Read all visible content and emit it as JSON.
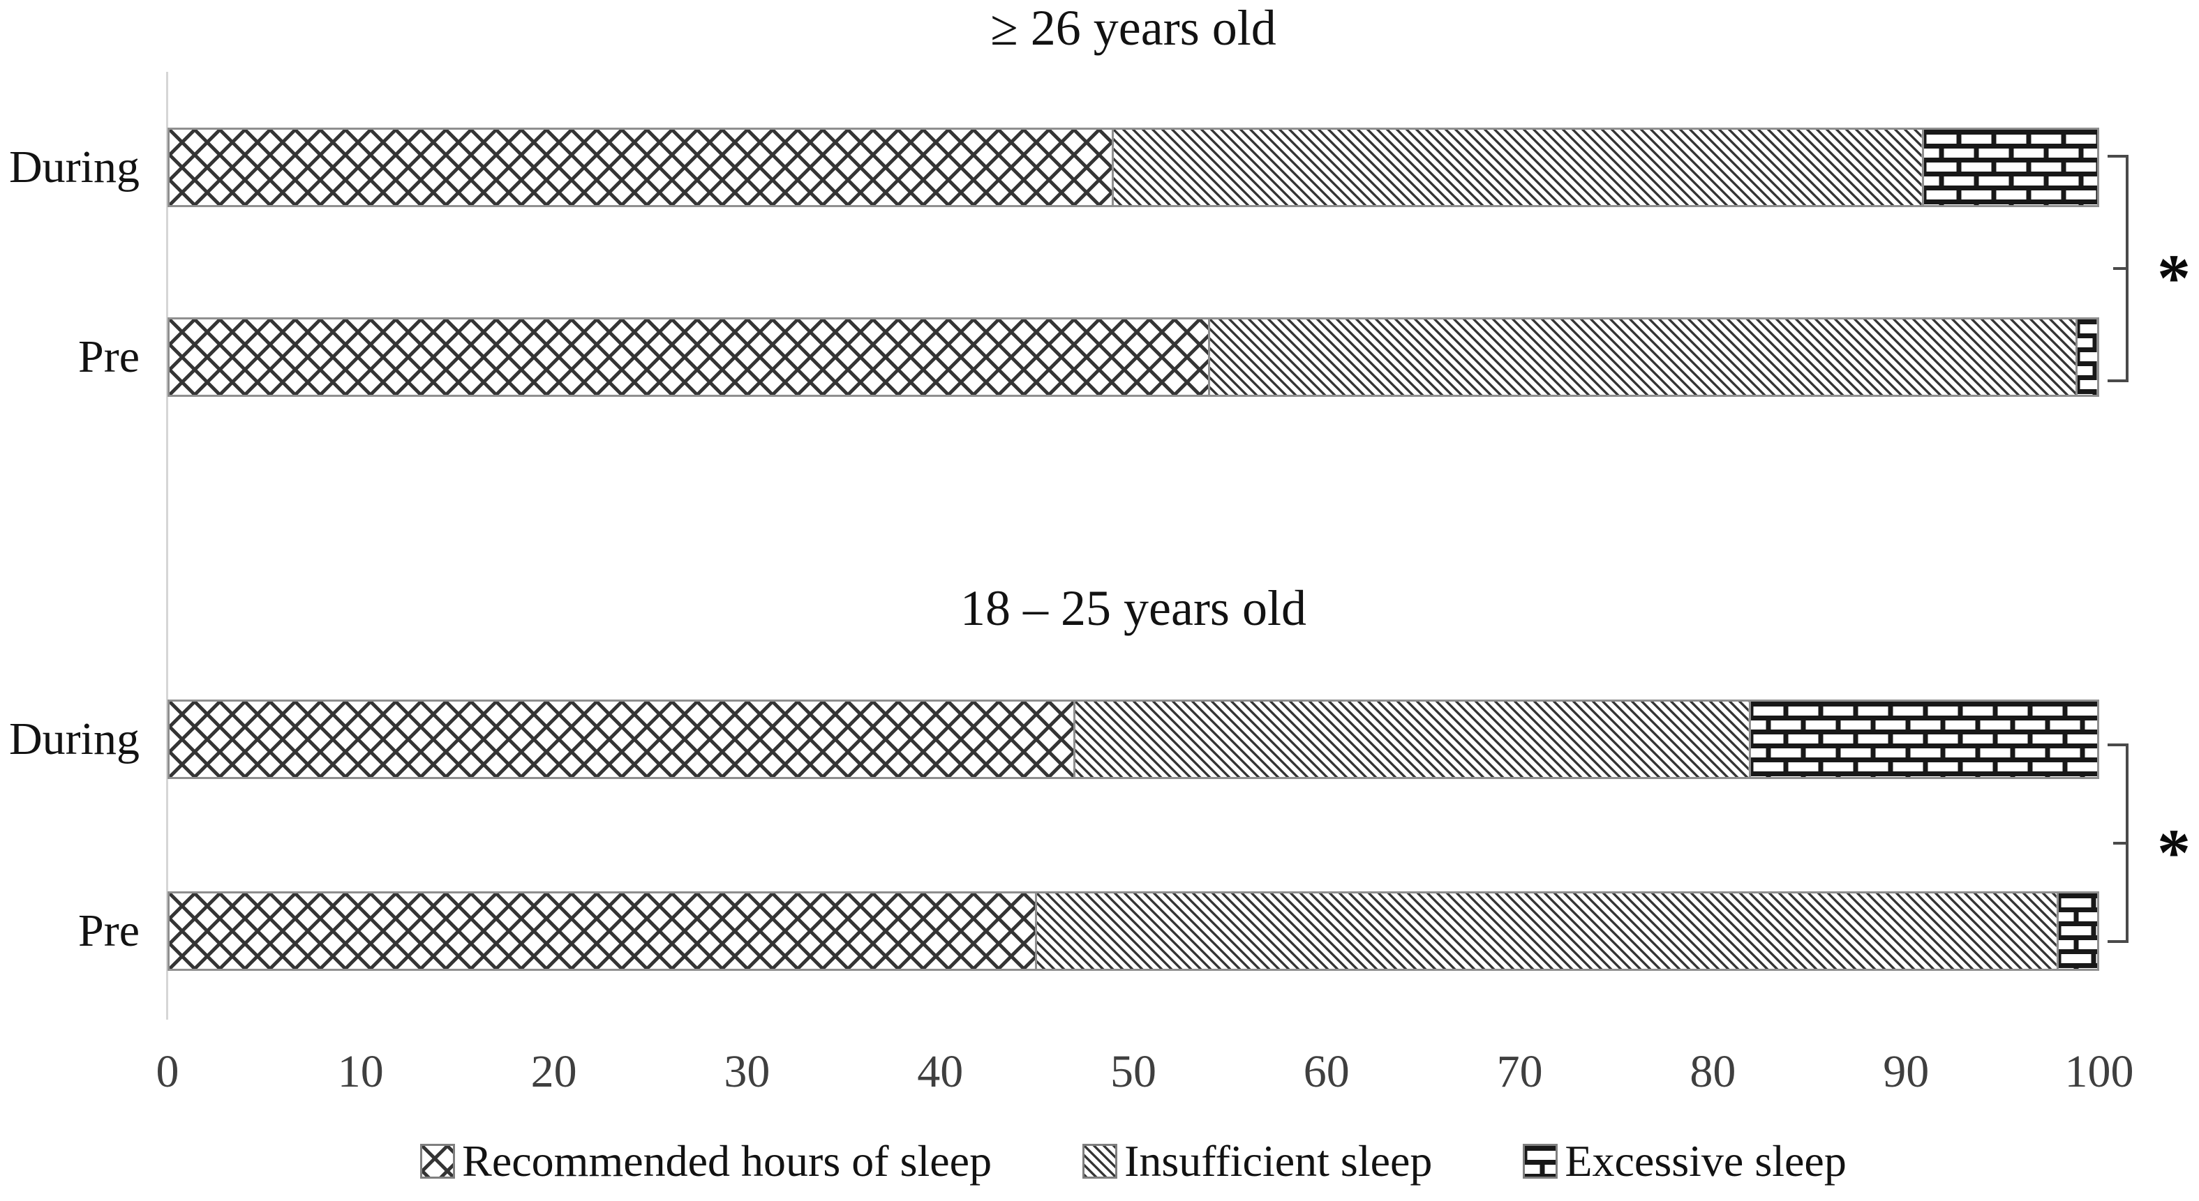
{
  "figure": {
    "description": "Stacked horizontal bar chart of sleep duration categories, pre vs during, for two age groups"
  },
  "colors": {
    "pattern_line": "#343434",
    "brick_line": "#181818",
    "bar_border": "#8f8f8f",
    "axis_line": "#d6d6d6",
    "tick_text": "#3f3f3f",
    "text": "#121212",
    "bracket": "#4a4a4a"
  },
  "x_axis": {
    "min": 0,
    "max": 100,
    "ticks": [
      "0",
      "10",
      "20",
      "30",
      "40",
      "50",
      "60",
      "70",
      "80",
      "90",
      "100"
    ]
  },
  "legend": {
    "items": [
      {
        "label": "Recommended hours of sleep",
        "pattern": "crosshatch"
      },
      {
        "label": "Insufficient sleep",
        "pattern": "diagonal"
      },
      {
        "label": "Excessive sleep",
        "pattern": "brick"
      }
    ]
  },
  "chart_data": [
    {
      "type": "bar",
      "orientation": "horizontal",
      "stacked": true,
      "title": "≥ 26 years old",
      "categories": [
        "During",
        "Pre"
      ],
      "series": [
        {
          "name": "Recommended hours of sleep",
          "pattern": "crosshatch",
          "values": [
            49,
            54
          ]
        },
        {
          "name": "Insufficient sleep",
          "pattern": "diagonal",
          "values": [
            42,
            45
          ]
        },
        {
          "name": "Excessive sleep",
          "pattern": "brick",
          "values": [
            9,
            1
          ]
        }
      ],
      "xlim": [
        0,
        100
      ],
      "grid": false,
      "significance_label": "*"
    },
    {
      "type": "bar",
      "orientation": "horizontal",
      "stacked": true,
      "title": "18 – 25 years old",
      "categories": [
        "During",
        "Pre"
      ],
      "series": [
        {
          "name": "Recommended hours of sleep",
          "pattern": "crosshatch",
          "values": [
            47,
            45
          ]
        },
        {
          "name": "Insufficient sleep",
          "pattern": "diagonal",
          "values": [
            35,
            53
          ]
        },
        {
          "name": "Excessive sleep",
          "pattern": "brick",
          "values": [
            18,
            2
          ]
        }
      ],
      "xlim": [
        0,
        100
      ],
      "grid": false,
      "significance_label": "*"
    }
  ]
}
